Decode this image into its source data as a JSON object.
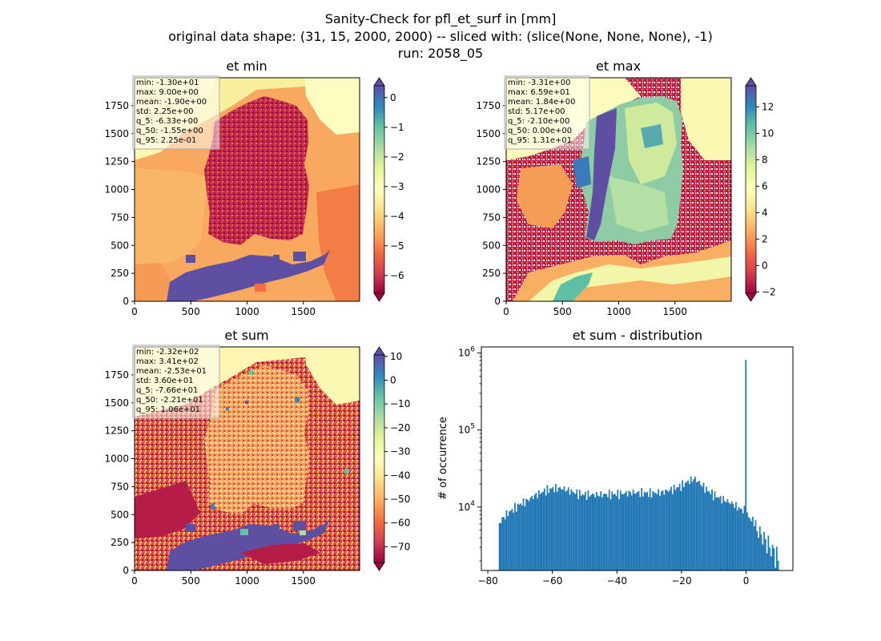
{
  "figure": {
    "title_lines": [
      "Sanity-Check for pfl_et_surf in [mm]",
      "original data shape: (31, 15, 2000, 2000) -- sliced with: (slice(None, None, None), -1)",
      "run: 2058_05"
    ]
  },
  "colors": {
    "colormap": "Spectral",
    "stops": [
      "#9e0142",
      "#d53e4f",
      "#f46d43",
      "#fdae61",
      "#fee08b",
      "#ffffbf",
      "#e6f598",
      "#abdda4",
      "#66c2a5",
      "#3288bd",
      "#5e4fa2"
    ],
    "hist_bar": "#1f77b4",
    "ocean": "#fbf8b3",
    "masked_blob": "#5e4fa2"
  },
  "chart_data": [
    {
      "type": "heatmap",
      "title": "et min",
      "xlim": [
        0,
        2000
      ],
      "ylim": [
        0,
        2000
      ],
      "xticks": [
        0,
        500,
        1000,
        1500
      ],
      "yticks": [
        0,
        250,
        500,
        750,
        1000,
        1250,
        1500,
        1750
      ],
      "colorbar": {
        "vmin": -6.6,
        "vmax": 0.4,
        "ticks": [
          0,
          -1,
          -2,
          -3,
          -4,
          -5,
          -6
        ],
        "extend": "both"
      },
      "stats": [
        "min: -1.30e+01",
        "max: 9.00e+00",
        "mean: -1.90e+00",
        "std: 2.25e+00",
        "q_5: -6.33e+00",
        "q_50: -1.55e+00",
        "q_95: 2.25e-01"
      ]
    },
    {
      "type": "heatmap",
      "title": "et max",
      "xlim": [
        0,
        2000
      ],
      "ylim": [
        0,
        2000
      ],
      "xticks": [
        0,
        500,
        1000,
        1500
      ],
      "yticks": [
        0,
        250,
        500,
        750,
        1000,
        1250,
        1500,
        1750
      ],
      "colorbar": {
        "vmin": -2.1,
        "vmax": 13.6,
        "ticks": [
          12,
          10,
          8,
          6,
          4,
          2,
          0,
          -2
        ],
        "extend": "both"
      },
      "stats": [
        "min: -3.31e+00",
        "max: 6.59e+01",
        "mean: 1.84e+00",
        "std: 5.17e+00",
        "q_5: -2.10e+00",
        "q_50: 0.00e+00",
        "q_95: 1.31e+01"
      ]
    },
    {
      "type": "heatmap",
      "title": "et sum",
      "xlim": [
        0,
        2000
      ],
      "ylim": [
        0,
        2000
      ],
      "xticks": [
        0,
        500,
        1000,
        1500
      ],
      "yticks": [
        0,
        250,
        500,
        750,
        1000,
        1250,
        1500,
        1750
      ],
      "colorbar": {
        "vmin": -76.6,
        "vmax": 10.6,
        "ticks": [
          10,
          0,
          -10,
          -20,
          -30,
          -40,
          -50,
          -60,
          -70
        ],
        "extend": "both"
      },
      "stats": [
        "min: -2.32e+02",
        "max: 3.41e+02",
        "mean: -2.53e+01",
        "std: 3.60e+01",
        "q_5: -7.66e+01",
        "q_50: -2.21e+01",
        "q_95: 1.06e+01"
      ]
    },
    {
      "type": "bar",
      "title": "et sum - distribution",
      "ylabel": "# of occurrence",
      "yscale": "log",
      "xlim": [
        -82,
        14.5
      ],
      "ylim": [
        1500,
        1200000
      ],
      "xticks": [
        -80,
        -60,
        -40,
        -20,
        0
      ],
      "yticks": [
        10000,
        100000,
        1000000
      ],
      "bin_range": [
        -76.6,
        10.6
      ],
      "peak": {
        "x": 0,
        "count": 810000
      },
      "profile": [
        [
          -76.6,
          6000
        ],
        [
          -75.5,
          7000
        ],
        [
          -74,
          8200
        ],
        [
          -72,
          9500
        ],
        [
          -70,
          11000
        ],
        [
          -68,
          12000
        ],
        [
          -65,
          14500
        ],
        [
          -62,
          16500
        ],
        [
          -60,
          17500
        ],
        [
          -57,
          17500
        ],
        [
          -55,
          16500
        ],
        [
          -52,
          15000
        ],
        [
          -50,
          14500
        ],
        [
          -45,
          14500
        ],
        [
          -40,
          14800
        ],
        [
          -35,
          15500
        ],
        [
          -30,
          15200
        ],
        [
          -26,
          15500
        ],
        [
          -23,
          17000
        ],
        [
          -20,
          19000
        ],
        [
          -18,
          21500
        ],
        [
          -16,
          23500
        ],
        [
          -14,
          20000
        ],
        [
          -12,
          16500
        ],
        [
          -10,
          14500
        ],
        [
          -8,
          13000
        ],
        [
          -6,
          12000
        ],
        [
          -4,
          11000
        ],
        [
          -2,
          9500
        ],
        [
          -0.5,
          9000
        ],
        [
          1,
          7200
        ],
        [
          3,
          6300
        ],
        [
          5,
          5000
        ],
        [
          7,
          3800
        ],
        [
          9,
          3000
        ],
        [
          10.6,
          2200
        ]
      ]
    }
  ]
}
